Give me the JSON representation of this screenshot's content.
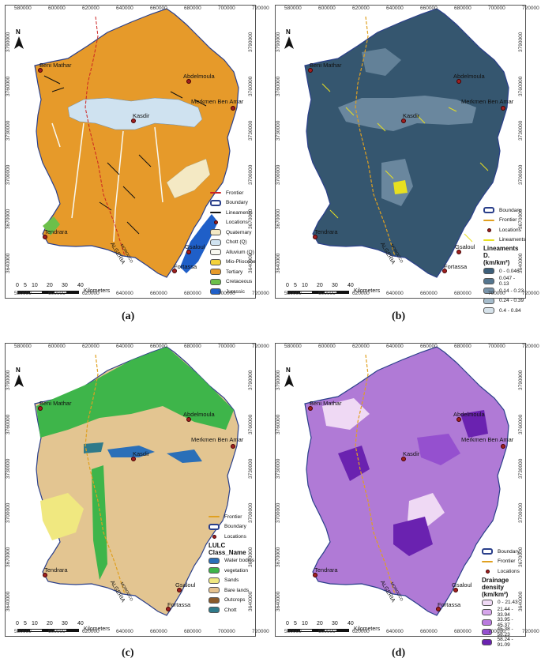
{
  "axes": {
    "x_ticks": [
      "580000",
      "600000",
      "620000",
      "640000",
      "660000",
      "680000",
      "700000",
      "720000"
    ],
    "y_ticks": [
      "3790000",
      "3760000",
      "3730000",
      "3700000",
      "3670000",
      "3640000"
    ]
  },
  "places": {
    "beni_mathar": "Beni Mathar",
    "abdelmoula": "Abdelmoula",
    "merkmen": "Merkmen Ben Amar",
    "kasdir": "Kasdir",
    "tendrara": "Tendrara",
    "gsaloul": "Gsaloul",
    "fortassa": "Fortassa"
  },
  "border": {
    "algeria": "ALGERIA",
    "morocco": "MOROCCO"
  },
  "north": "N",
  "scale": {
    "ticks": [
      "0",
      "5",
      "10",
      "20",
      "30",
      "40"
    ],
    "unit": "Kilometers"
  },
  "captions": {
    "a": "(a)",
    "b": "(b)",
    "c": "(c)",
    "d": "(d)"
  },
  "legend_a": [
    {
      "label": "Frontier",
      "color": "#cc2222",
      "kind": "line"
    },
    {
      "label": "Boundary",
      "color": "#2a3f8a",
      "kind": "outline"
    },
    {
      "label": "Lineaments",
      "color": "#111111",
      "kind": "line"
    },
    {
      "label": "Locations",
      "color": "#a02020",
      "kind": "dot"
    },
    {
      "label": "Quaternary",
      "color": "#f4e9c4",
      "kind": "fill"
    },
    {
      "label": "Chott (Q)",
      "color": "#cfe2f0",
      "kind": "fill"
    },
    {
      "label": "Alluvium (Q)",
      "color": "#f8f8f0",
      "kind": "fill"
    },
    {
      "label": "Mio-Pliocene",
      "color": "#f3d23a",
      "kind": "fill"
    },
    {
      "label": "Tertiary",
      "color": "#e69a2a",
      "kind": "fill"
    },
    {
      "label": "Cretaceous",
      "color": "#6cc04a",
      "kind": "fill"
    },
    {
      "label": "Jurassic",
      "color": "#1f5fc8",
      "kind": "fill"
    }
  ],
  "legend_b": {
    "items": [
      {
        "label": "Boundary",
        "color": "#2a3f8a",
        "kind": "outline"
      },
      {
        "label": "Frontier",
        "color": "#e0a020",
        "kind": "line"
      },
      {
        "label": "Locations",
        "color": "#a02020",
        "kind": "dot"
      },
      {
        "label": "Lineaments",
        "color": "#e8e020",
        "kind": "line"
      }
    ],
    "title": "Lineaments D.",
    "unit": "(km/km²)",
    "classes": [
      {
        "label": "0 - 0.046",
        "color": "#3d5f7a"
      },
      {
        "label": "0.047 - 0.13",
        "color": "#55768f"
      },
      {
        "label": "0.14 - 0.23",
        "color": "#7894aa"
      },
      {
        "label": "0.24 - 0.39",
        "color": "#a6bccb"
      },
      {
        "label": "0.4 - 0.84",
        "color": "#d6e2ea"
      }
    ]
  },
  "legend_c": {
    "items": [
      {
        "label": "Frontier",
        "color": "#e0a020",
        "kind": "line"
      },
      {
        "label": "Boundary",
        "color": "#2a3f8a",
        "kind": "outline"
      },
      {
        "label": "Locations",
        "color": "#a02020",
        "kind": "dot"
      }
    ],
    "title": "LULC",
    "subtitle": "Class_Name",
    "classes": [
      {
        "label": "Water bodies",
        "color": "#2a6fb8"
      },
      {
        "label": "vegetation",
        "color": "#3eb54a"
      },
      {
        "label": "Sands",
        "color": "#f0e880"
      },
      {
        "label": "Bare lands",
        "color": "#e6c28e"
      },
      {
        "label": "Outcrops",
        "color": "#8a5a2a"
      },
      {
        "label": "Chott",
        "color": "#2f7a8a"
      }
    ]
  },
  "legend_d": {
    "items": [
      {
        "label": "Boundary",
        "color": "#2a3f8a",
        "kind": "outline"
      },
      {
        "label": "Frontier",
        "color": "#e0a020",
        "kind": "line"
      },
      {
        "label": "Locations",
        "color": "#a02020",
        "kind": "dot"
      }
    ],
    "title": "Drainage density",
    "unit": "(km/km²)",
    "classes": [
      {
        "label": "0 - 21.43",
        "color": "#efd9f4"
      },
      {
        "label": "21.44 - 33.94",
        "color": "#d6a6ea"
      },
      {
        "label": "33.95 - 45.37",
        "color": "#b97ade"
      },
      {
        "label": "45.38 - 58.23",
        "color": "#9550cf"
      },
      {
        "label": "58.24 - 91.09",
        "color": "#6a22b0"
      }
    ]
  },
  "colors": {
    "a_fill": "#e69a2a",
    "b_fill": "#35566f",
    "c_fill": "#e3c591",
    "d_fill": "#b07ad6"
  }
}
